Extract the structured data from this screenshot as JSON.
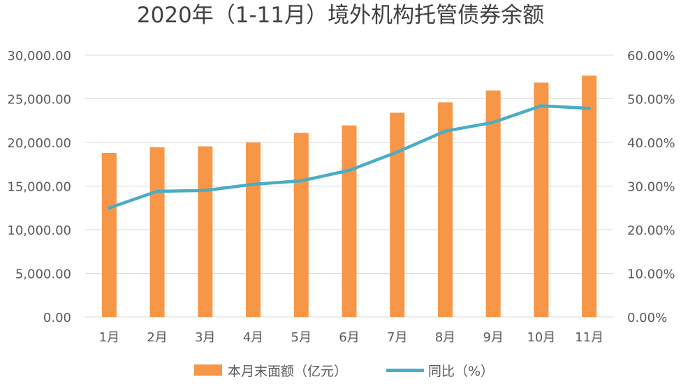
{
  "chart_data": {
    "type": "bar+line",
    "title": "2020年（1-11月）境外机构托管债券余额",
    "categories": [
      "1月",
      "2月",
      "3月",
      "4月",
      "5月",
      "6月",
      "7月",
      "8月",
      "9月",
      "10月",
      "11月"
    ],
    "series": [
      {
        "name": "本月末面额（亿元）",
        "type": "bar",
        "axis": "left",
        "color": "#F79646",
        "values": [
          18800,
          19450,
          19550,
          20000,
          21100,
          21950,
          23400,
          24600,
          25950,
          26850,
          27650
        ]
      },
      {
        "name": "同比（%）",
        "type": "line",
        "axis": "right",
        "color": "#4BACC6",
        "values": [
          0.25,
          0.288,
          0.29,
          0.304,
          0.312,
          0.336,
          0.378,
          0.426,
          0.446,
          0.484,
          0.478
        ]
      }
    ],
    "y_left": {
      "range": [
        0,
        30000
      ],
      "ticks": [
        "0.00",
        "5,000.00",
        "10,000.00",
        "15,000.00",
        "20,000.00",
        "25,000.00",
        "30,000.00"
      ]
    },
    "y_right": {
      "range": [
        0,
        0.6
      ],
      "ticks": [
        "0.00%",
        "10.00%",
        "20.00%",
        "30.00%",
        "40.00%",
        "50.00%",
        "60.00%"
      ]
    },
    "grid": true,
    "legend": "bottom-center"
  }
}
